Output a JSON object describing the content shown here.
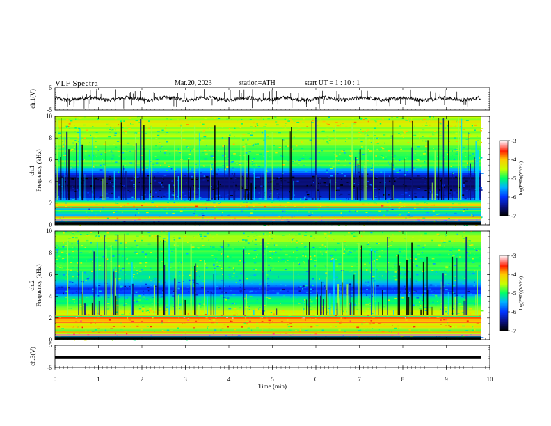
{
  "header": {
    "title": "VLF  Spectra",
    "date": "Mar.20, 2023",
    "station": "station=ATH",
    "start": "start  UT  =    1  : 10 : 1"
  },
  "chart_data": [
    {
      "type": "line",
      "name": "ch1-waveform",
      "ylabel": "ch.1(V)",
      "ylim": [
        -5,
        5
      ],
      "yticks": [
        "5",
        "-5"
      ],
      "xlim": [
        0,
        10
      ],
      "x_extent": [
        0,
        9.8
      ],
      "level": 0
    },
    {
      "type": "heatmap",
      "name": "ch1-spectrogram",
      "ylabel": "ch.1\nFrequency (kHz)",
      "ylim": [
        0,
        10
      ],
      "yticks": [
        "0",
        "2",
        "4",
        "6",
        "8",
        "10"
      ],
      "xlim": [
        0,
        10
      ],
      "x_extent": [
        0,
        9.8
      ],
      "colorbar": {
        "label": "log(PSD)(V²/Hz)",
        "range": [
          -7,
          -3
        ],
        "ticks": [
          "-3",
          "-4",
          "-5",
          "-6",
          "-7"
        ]
      },
      "profile_log_psd": [
        [
          0.0,
          -4.6
        ],
        [
          0.3,
          -5.8
        ],
        [
          0.6,
          -4.2
        ],
        [
          0.9,
          -5.5
        ],
        [
          1.2,
          -4.8
        ],
        [
          1.5,
          -5.4
        ],
        [
          1.8,
          -3.9
        ],
        [
          2.1,
          -5.0
        ],
        [
          2.4,
          -5.8
        ],
        [
          2.8,
          -6.3
        ],
        [
          3.3,
          -6.6
        ],
        [
          3.8,
          -6.4
        ],
        [
          4.3,
          -6.8
        ],
        [
          4.8,
          -5.8
        ],
        [
          5.5,
          -4.8
        ],
        [
          6.5,
          -4.9
        ],
        [
          7.5,
          -4.6
        ],
        [
          8.5,
          -4.7
        ],
        [
          9.3,
          -4.3
        ],
        [
          10.0,
          -4.6
        ]
      ]
    },
    {
      "type": "heatmap",
      "name": "ch2-spectrogram",
      "ylabel": "ch.2\nFrequency (kHz)",
      "ylim": [
        0,
        10
      ],
      "yticks": [
        "0",
        "2",
        "4",
        "6",
        "8",
        "10"
      ],
      "xlim": [
        0,
        10
      ],
      "x_extent": [
        0,
        9.8
      ],
      "colorbar": {
        "label": "log(PSD)(V²/Hz)",
        "range": [
          -7,
          -3
        ],
        "ticks": [
          "-3",
          "-4",
          "-5",
          "-6",
          "-7"
        ]
      },
      "profile_log_psd": [
        [
          0.0,
          -4.4
        ],
        [
          0.3,
          -5.5
        ],
        [
          0.6,
          -3.8
        ],
        [
          0.9,
          -4.9
        ],
        [
          1.2,
          -4.1
        ],
        [
          1.5,
          -4.3
        ],
        [
          1.8,
          -3.9
        ],
        [
          2.1,
          -3.6
        ],
        [
          2.4,
          -4.3
        ],
        [
          2.8,
          -4.7
        ],
        [
          3.3,
          -4.9
        ],
        [
          3.8,
          -5.0
        ],
        [
          4.3,
          -5.8
        ],
        [
          4.8,
          -6.0
        ],
        [
          5.5,
          -5.2
        ],
        [
          6.5,
          -5.0
        ],
        [
          7.5,
          -4.9
        ],
        [
          8.5,
          -5.0
        ],
        [
          9.3,
          -4.6
        ],
        [
          10.0,
          -4.8
        ]
      ]
    },
    {
      "type": "line",
      "name": "ch3-waveform",
      "ylabel": "ch.3(V)",
      "ylim": [
        -5,
        5
      ],
      "yticks": [
        "5",
        "-5"
      ],
      "xlim": [
        0,
        10
      ],
      "x_extent": [
        0,
        9.8
      ],
      "level": -0.5,
      "xlabel": "Time  (min)",
      "xticks": [
        "0",
        "1",
        "2",
        "3",
        "4",
        "5",
        "6",
        "7",
        "8",
        "9",
        "10"
      ]
    }
  ]
}
